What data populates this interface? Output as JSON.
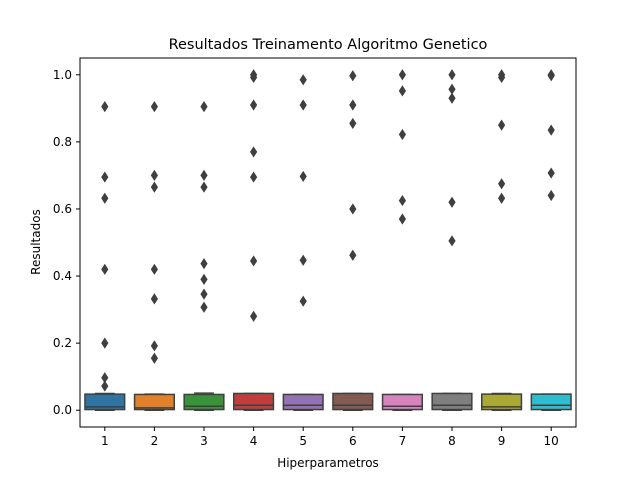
{
  "chart_data": {
    "type": "boxplot",
    "title": "Resultados Treinamento Algoritmo Genetico",
    "xlabel": "Hiperparametros",
    "ylabel": "Resultados",
    "categories": [
      "1",
      "2",
      "3",
      "4",
      "5",
      "6",
      "7",
      "8",
      "9",
      "10"
    ],
    "ylim": [
      -0.05,
      1.05
    ],
    "yticks": [
      0.0,
      0.2,
      0.4,
      0.6,
      0.8,
      1.0
    ],
    "ytick_labels": [
      "0.0",
      "0.2",
      "0.4",
      "0.6",
      "0.8",
      "1.0"
    ],
    "grid": false,
    "colors": [
      "#3274a1",
      "#e1812c",
      "#3a923a",
      "#c03d3e",
      "#9372b2",
      "#845b53",
      "#d684bd",
      "#7f7f7f",
      "#a9aa35",
      "#2fbdcd"
    ],
    "box_edge_color": "#3f3f3f",
    "boxes": [
      {
        "q1": 0.002,
        "median": 0.01,
        "q3": 0.048,
        "whisker_low": 0.0,
        "whisker_high": 0.05,
        "outliers": [
          0.905,
          0.695,
          0.632,
          0.42,
          0.2,
          0.097,
          0.072
        ]
      },
      {
        "q1": 0.002,
        "median": 0.007,
        "q3": 0.047,
        "whisker_low": 0.0,
        "whisker_high": 0.048,
        "outliers": [
          0.905,
          0.7,
          0.665,
          0.42,
          0.332,
          0.192,
          0.155
        ]
      },
      {
        "q1": 0.002,
        "median": 0.012,
        "q3": 0.047,
        "whisker_low": 0.0,
        "whisker_high": 0.051,
        "outliers": [
          0.905,
          0.7,
          0.665,
          0.437,
          0.39,
          0.346,
          0.307
        ]
      },
      {
        "q1": 0.002,
        "median": 0.015,
        "q3": 0.05,
        "whisker_low": 0.0,
        "whisker_high": 0.05,
        "outliers": [
          1.0,
          0.992,
          0.91,
          0.77,
          0.695,
          0.445,
          0.28
        ]
      },
      {
        "q1": 0.002,
        "median": 0.015,
        "q3": 0.047,
        "whisker_low": 0.0,
        "whisker_high": 0.047,
        "outliers": [
          0.985,
          0.91,
          0.697,
          0.447,
          0.325
        ]
      },
      {
        "q1": 0.002,
        "median": 0.015,
        "q3": 0.05,
        "whisker_low": 0.0,
        "whisker_high": 0.05,
        "outliers": [
          0.997,
          0.91,
          0.855,
          0.6,
          0.462
        ]
      },
      {
        "q1": 0.002,
        "median": 0.012,
        "q3": 0.047,
        "whisker_low": 0.0,
        "whisker_high": 0.047,
        "outliers": [
          1.0,
          0.952,
          0.822,
          0.625,
          0.57
        ]
      },
      {
        "q1": 0.002,
        "median": 0.015,
        "q3": 0.05,
        "whisker_low": 0.0,
        "whisker_high": 0.05,
        "outliers": [
          1.0,
          0.957,
          0.93,
          0.62,
          0.505
        ]
      },
      {
        "q1": 0.002,
        "median": 0.01,
        "q3": 0.048,
        "whisker_low": 0.0,
        "whisker_high": 0.05,
        "outliers": [
          1.0,
          0.992,
          0.85,
          0.675,
          0.632
        ]
      },
      {
        "q1": 0.002,
        "median": 0.015,
        "q3": 0.048,
        "whisker_low": 0.0,
        "whisker_high": 0.048,
        "outliers": [
          1.0,
          0.997,
          0.835,
          0.707,
          0.64
        ]
      }
    ]
  }
}
